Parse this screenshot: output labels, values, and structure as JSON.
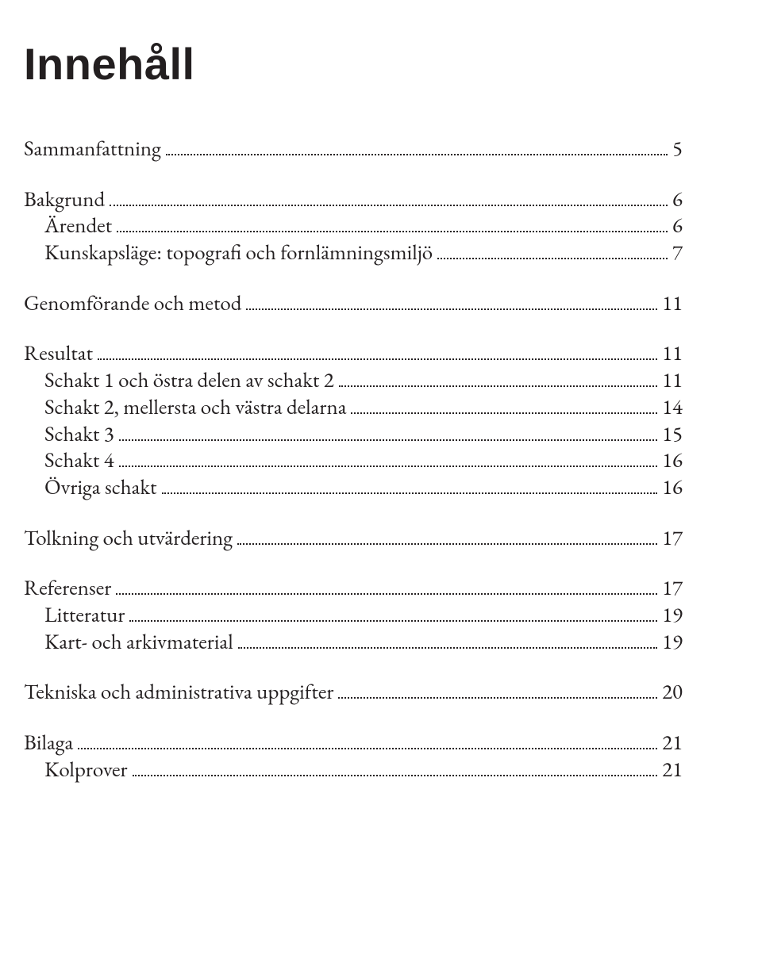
{
  "title": "Innehåll",
  "typography": {
    "title_font_family": "Gill Sans",
    "title_font_size_pt": 42,
    "title_font_weight": 700,
    "body_font_family": "Garamond",
    "body_font_size_pt": 20,
    "text_color": "#231f20",
    "background_color": "#ffffff",
    "leader_style": "dotted"
  },
  "groups": [
    {
      "entries": [
        {
          "label": "Sammanfattning",
          "page": "5",
          "level": 0
        }
      ]
    },
    {
      "entries": [
        {
          "label": "Bakgrund",
          "page": "6",
          "level": 0
        },
        {
          "label": "Ärendet",
          "page": "6",
          "level": 1
        },
        {
          "label": "Kunskapsläge: topografi och fornlämningsmiljö",
          "page": "7",
          "level": 1
        }
      ]
    },
    {
      "entries": [
        {
          "label": "Genomförande och metod",
          "page": "11",
          "level": 0
        }
      ]
    },
    {
      "entries": [
        {
          "label": "Resultat",
          "page": "11",
          "level": 0
        },
        {
          "label": "Schakt 1 och östra delen av schakt 2",
          "page": "11",
          "level": 1
        },
        {
          "label": "Schakt 2, mellersta och västra delarna",
          "page": "14",
          "level": 1
        },
        {
          "label": "Schakt 3",
          "page": "15",
          "level": 1
        },
        {
          "label": "Schakt 4",
          "page": "16",
          "level": 1
        },
        {
          "label": "Övriga schakt",
          "page": "16",
          "level": 1
        }
      ]
    },
    {
      "entries": [
        {
          "label": "Tolkning och utvärdering",
          "page": "17",
          "level": 0
        }
      ]
    },
    {
      "entries": [
        {
          "label": "Referenser",
          "page": "17",
          "level": 0
        },
        {
          "label": "Litteratur",
          "page": "19",
          "level": 1
        },
        {
          "label": "Kart- och arkivmaterial",
          "page": "19",
          "level": 1
        }
      ]
    },
    {
      "entries": [
        {
          "label": "Tekniska och administrativa uppgifter",
          "page": "20",
          "level": 0
        }
      ]
    },
    {
      "entries": [
        {
          "label": "Bilaga",
          "page": "21",
          "level": 0
        },
        {
          "label": "Kolprover",
          "page": "21",
          "level": 1
        }
      ]
    }
  ]
}
